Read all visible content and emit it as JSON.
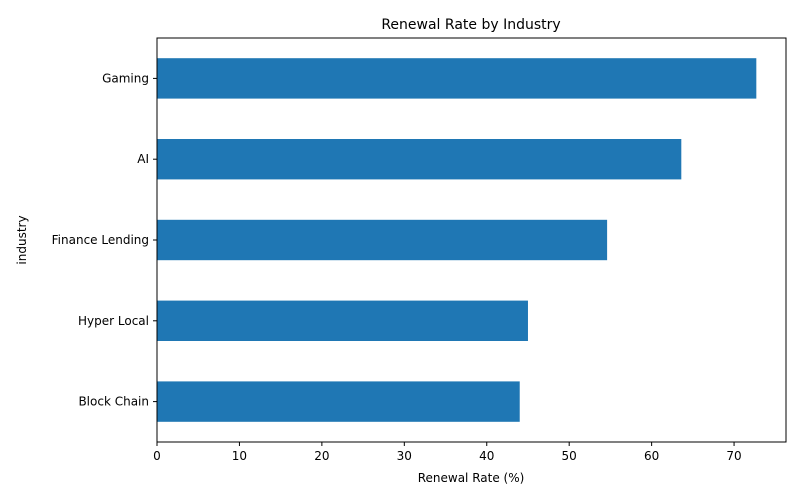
{
  "chart_data": {
    "type": "bar",
    "orientation": "horizontal",
    "title": "Renewal Rate by Industry",
    "xlabel": "Renewal Rate (%)",
    "ylabel": "industry",
    "categories": [
      "Block Chain",
      "Hyper Local",
      "Finance Lending",
      "AI",
      "Gaming"
    ],
    "values": [
      44.0,
      45.0,
      54.6,
      63.6,
      72.7
    ],
    "xlim": [
      0,
      76.3
    ],
    "xticks": [
      0,
      10,
      20,
      30,
      40,
      50,
      60,
      70
    ],
    "grid": false,
    "legend": "none",
    "bar_color": "#1f77b4"
  }
}
